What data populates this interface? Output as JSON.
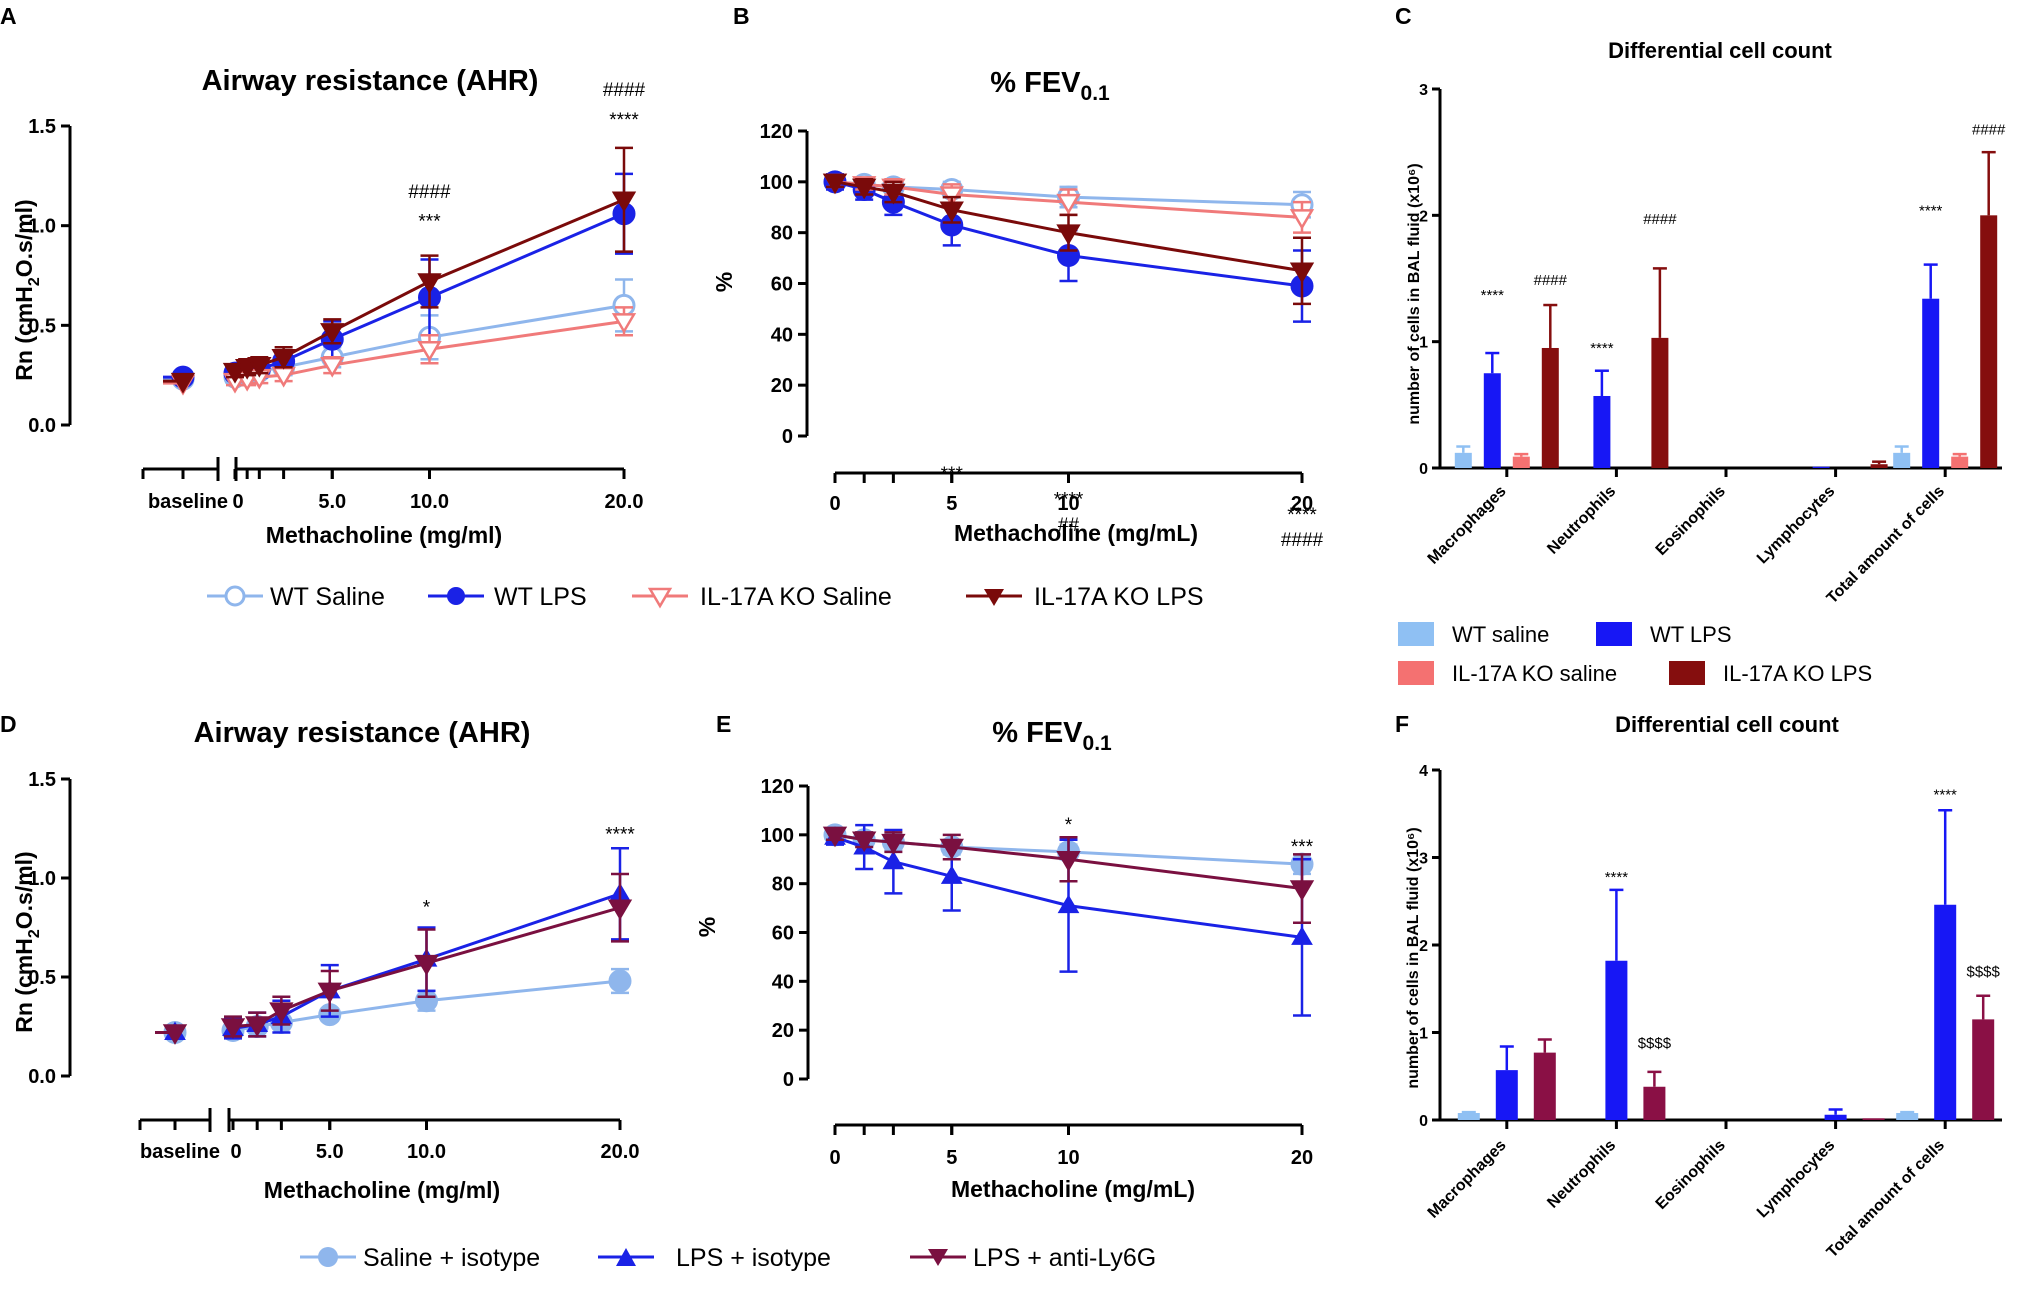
{
  "chart_data": [
    {
      "panel": "A",
      "type": "line",
      "title": "Airway resistance (AHR)",
      "xlabel": "Methacholine (mg/ml)",
      "ylabel": "Rn (cmH2O.s/ml)",
      "ylim": [
        0,
        1.5
      ],
      "yticks": [
        "0.0",
        "0.5",
        "1.0",
        "1.5"
      ],
      "xticks": [
        {
          "v": 0,
          "l": "0"
        },
        {
          "v": 5,
          "l": "5.0"
        },
        {
          "v": 10,
          "l": "10.0"
        },
        {
          "v": 20,
          "l": "20.0"
        }
      ],
      "baseline_label": "baseline",
      "x": [
        0,
        0.625,
        1.25,
        2.5,
        5,
        10,
        20
      ],
      "series": [
        {
          "name": "WT Saline",
          "color": "#8fb6ec",
          "marker": "circle-open",
          "baseline": 0.23,
          "values": [
            0.24,
            0.26,
            0.27,
            0.29,
            0.34,
            0.44,
            0.6
          ],
          "errors": [
            0.02,
            0.03,
            0.03,
            0.04,
            0.05,
            0.11,
            0.13
          ]
        },
        {
          "name": "WT LPS",
          "color": "#1a22e6",
          "marker": "circle",
          "baseline": 0.24,
          "values": [
            0.26,
            0.27,
            0.28,
            0.32,
            0.43,
            0.64,
            1.06
          ],
          "errors": [
            0.03,
            0.03,
            0.04,
            0.05,
            0.09,
            0.19,
            0.2
          ]
        },
        {
          "name": "IL-17A KO Saline",
          "color": "#f07a7a",
          "marker": "tri-down-open",
          "baseline": 0.21,
          "values": [
            0.22,
            0.23,
            0.24,
            0.25,
            0.3,
            0.38,
            0.52
          ],
          "errors": [
            0.02,
            0.03,
            0.03,
            0.03,
            0.04,
            0.07,
            0.07
          ]
        },
        {
          "name": "IL-17A KO LPS",
          "color": "#7a0a0a",
          "marker": "tri-down",
          "baseline": 0.22,
          "values": [
            0.27,
            0.29,
            0.3,
            0.34,
            0.47,
            0.72,
            1.13
          ],
          "errors": [
            0.03,
            0.04,
            0.04,
            0.05,
            0.06,
            0.13,
            0.26
          ]
        }
      ],
      "annotations": [
        {
          "x": 10,
          "y": 1.17,
          "text": "####"
        },
        {
          "x": 10,
          "y": 1.02,
          "text": "***"
        },
        {
          "x": 20,
          "y": 1.68,
          "text": "####"
        },
        {
          "x": 20,
          "y": 1.53,
          "text": "****"
        }
      ]
    },
    {
      "panel": "B",
      "type": "line",
      "title": "% FEV",
      "title_sub": "0.1",
      "xlabel": "Methacholine (mg/mL)",
      "ylabel": "%",
      "ylim": [
        0,
        120
      ],
      "yticks": [
        "0",
        "20",
        "40",
        "60",
        "80",
        "100",
        "120"
      ],
      "xticks": [
        {
          "v": 0,
          "l": "0"
        },
        {
          "v": 5,
          "l": "5"
        },
        {
          "v": 10,
          "l": "10"
        },
        {
          "v": 20,
          "l": "20"
        }
      ],
      "x": [
        0,
        1.25,
        2.5,
        5,
        10,
        20
      ],
      "series": [
        {
          "name": "WT Saline",
          "color": "#8fb6ec",
          "marker": "circle-open",
          "values": [
            100,
            99,
            98,
            97,
            94,
            91
          ],
          "errors": [
            2,
            2,
            2,
            3,
            4,
            5
          ]
        },
        {
          "name": "WT LPS",
          "color": "#1a22e6",
          "marker": "circle",
          "values": [
            100,
            97,
            92,
            83,
            71,
            59
          ],
          "errors": [
            3,
            4,
            5,
            8,
            10,
            14
          ]
        },
        {
          "name": "IL-17A KO Saline",
          "color": "#f07a7a",
          "marker": "tri-down-open",
          "values": [
            100,
            99,
            98,
            95,
            92,
            86
          ],
          "errors": [
            2,
            2,
            3,
            4,
            5,
            6
          ]
        },
        {
          "name": "IL-17A KO LPS",
          "color": "#7a0a0a",
          "marker": "tri-down",
          "values": [
            100,
            98,
            96,
            89,
            80,
            65
          ],
          "errors": [
            2,
            3,
            4,
            5,
            7,
            13
          ]
        }
      ],
      "annotations": [
        {
          "x": 5,
          "y": -15,
          "text": "***"
        },
        {
          "x": 10,
          "y": -25,
          "text": "****"
        },
        {
          "x": 10,
          "y": -35,
          "text": "##"
        },
        {
          "x": 20,
          "y": -31,
          "text": "****"
        },
        {
          "x": 20,
          "y": -41,
          "text": "####"
        }
      ]
    },
    {
      "panel": "C",
      "type": "bar",
      "title": "Differential cell count",
      "ylabel": "number of cells in BAL fluid (x10⁶)",
      "ylim": [
        0,
        3
      ],
      "yticks": [
        "0",
        "1",
        "2",
        "3"
      ],
      "categories": [
        "Macrophages",
        "Neutrophils",
        "Eosinophils",
        "Lymphocytes",
        "Total amount of cells"
      ],
      "series": [
        {
          "name": "WT saline",
          "color": "#8fc0f3",
          "values": [
            0.12,
            0,
            0,
            0,
            0.12
          ],
          "errors": [
            0.05,
            0,
            0,
            0,
            0.05
          ]
        },
        {
          "name": "WT LPS",
          "color": "#1717f5",
          "values": [
            0.75,
            0.57,
            0,
            0.01,
            1.34
          ],
          "errors": [
            0.16,
            0.2,
            0,
            0,
            0.27
          ]
        },
        {
          "name": "IL-17A KO saline",
          "color": "#f47171",
          "values": [
            0.09,
            0,
            0,
            0,
            0.09
          ],
          "errors": [
            0.02,
            0,
            0,
            0,
            0.02
          ]
        },
        {
          "name": "IL-17A KO LPS",
          "color": "#850e0e",
          "values": [
            0.95,
            1.03,
            0,
            0.03,
            2.0
          ],
          "errors": [
            0.34,
            0.55,
            0,
            0.02,
            0.5
          ]
        }
      ],
      "annotations": [
        {
          "cat": 0,
          "s": 1,
          "y": 1.37,
          "text": "****"
        },
        {
          "cat": 0,
          "s": 3,
          "y": 1.49,
          "text": "####"
        },
        {
          "cat": 1,
          "s": 1,
          "y": 0.95,
          "text": "****"
        },
        {
          "cat": 1,
          "s": 3,
          "y": 1.97,
          "text": "####"
        },
        {
          "cat": 4,
          "s": 1,
          "y": 2.04,
          "text": "****"
        },
        {
          "cat": 4,
          "s": 3,
          "y": 2.68,
          "text": "####"
        }
      ]
    },
    {
      "panel": "D",
      "type": "line",
      "title": "Airway resistance (AHR)",
      "xlabel": "Methacholine (mg/ml)",
      "ylabel": "Rn (cmH2O.s/ml)",
      "ylim": [
        0,
        1.5
      ],
      "yticks": [
        "0.0",
        "0.5",
        "1.0",
        "1.5"
      ],
      "xticks": [
        {
          "v": 0,
          "l": "0"
        },
        {
          "v": 5,
          "l": "5.0"
        },
        {
          "v": 10,
          "l": "10.0"
        },
        {
          "v": 20,
          "l": "20.0"
        }
      ],
      "baseline_label": "baseline",
      "x": [
        0,
        1.25,
        2.5,
        5,
        10,
        20
      ],
      "series": [
        {
          "name": "Saline + isotype",
          "color": "#8fb6ec",
          "marker": "circle",
          "baseline": 0.22,
          "values": [
            0.23,
            0.25,
            0.27,
            0.31,
            0.38,
            0.48
          ],
          "errors": [
            0.02,
            0.03,
            0.03,
            0.03,
            0.05,
            0.06
          ]
        },
        {
          "name": "LPS + isotype",
          "color": "#1a22e6",
          "marker": "tri-up",
          "baseline": 0.22,
          "values": [
            0.24,
            0.26,
            0.3,
            0.43,
            0.59,
            0.92
          ],
          "errors": [
            0.05,
            0.06,
            0.08,
            0.13,
            0.16,
            0.23
          ]
        },
        {
          "name": "LPS + anti-Ly6G",
          "color": "#7a1040",
          "marker": "tri-down",
          "baseline": 0.22,
          "values": [
            0.25,
            0.26,
            0.33,
            0.43,
            0.57,
            0.85
          ],
          "errors": [
            0.05,
            0.06,
            0.07,
            0.1,
            0.17,
            0.17
          ]
        }
      ],
      "annotations": [
        {
          "x": 10,
          "y": 0.85,
          "text": "*"
        },
        {
          "x": 20,
          "y": 1.22,
          "text": "****"
        }
      ]
    },
    {
      "panel": "E",
      "type": "line",
      "title": "% FEV",
      "title_sub": "0.1",
      "xlabel": "Methacholine (mg/mL)",
      "ylabel": "%",
      "ylim": [
        0,
        120
      ],
      "yticks": [
        "0",
        "20",
        "40",
        "60",
        "80",
        "100",
        "120"
      ],
      "xticks": [
        {
          "v": 0,
          "l": "0"
        },
        {
          "v": 5,
          "l": "5"
        },
        {
          "v": 10,
          "l": "10"
        },
        {
          "v": 20,
          "l": "20"
        }
      ],
      "x": [
        0,
        1.25,
        2.5,
        5,
        10,
        20
      ],
      "series": [
        {
          "name": "Saline + isotype",
          "color": "#8fb6ec",
          "marker": "circle",
          "values": [
            100,
            98,
            97,
            95,
            93,
            88
          ],
          "errors": [
            2,
            3,
            3,
            3,
            3,
            4
          ]
        },
        {
          "name": "LPS + isotype",
          "color": "#1a22e6",
          "marker": "tri-up",
          "values": [
            99,
            95,
            89,
            83,
            71,
            58
          ],
          "errors": [
            3,
            9,
            13,
            14,
            27,
            32
          ]
        },
        {
          "name": "LPS + anti-Ly6G",
          "color": "#7a1040",
          "marker": "tri-down",
          "values": [
            100,
            98,
            97,
            95,
            90,
            78
          ],
          "errors": [
            2,
            3,
            4,
            5,
            9,
            14
          ]
        }
      ],
      "annotations": [
        {
          "x": 10,
          "y": 104,
          "text": "*"
        },
        {
          "x": 20,
          "y": 95,
          "text": "***"
        }
      ]
    },
    {
      "panel": "F",
      "type": "bar",
      "title": "Differential cell count",
      "ylabel": "number of cells in BAL fluid (x10⁶)",
      "ylim": [
        0,
        4
      ],
      "yticks": [
        "0",
        "1",
        "2",
        "3",
        "4"
      ],
      "categories": [
        "Macrophages",
        "Neutrophils",
        "Eosinophils",
        "Lymphocytes",
        "Total amount of cells"
      ],
      "series": [
        {
          "name": "Saline + isotype",
          "color": "#8fc0f3",
          "values": [
            0.08,
            0,
            0,
            0,
            0.08
          ],
          "errors": [
            0.01,
            0,
            0,
            0,
            0.01
          ]
        },
        {
          "name": "LPS + isotype",
          "color": "#1717f5",
          "values": [
            0.57,
            1.82,
            0,
            0.06,
            2.46
          ],
          "errors": [
            0.27,
            0.81,
            0,
            0.06,
            1.08
          ]
        },
        {
          "name": "LPS + anti-Ly6G",
          "color": "#8a1045",
          "values": [
            0.77,
            0.38,
            0,
            0.02,
            1.15
          ],
          "errors": [
            0.15,
            0.17,
            0,
            0,
            0.27
          ]
        }
      ],
      "annotations": [
        {
          "cat": 1,
          "s": 1,
          "y": 2.78,
          "text": "****"
        },
        {
          "cat": 1,
          "s": 2,
          "y": 0.88,
          "text": "$$$$"
        },
        {
          "cat": 4,
          "s": 1,
          "y": 3.72,
          "text": "****"
        },
        {
          "cat": 4,
          "s": 2,
          "y": 1.7,
          "text": "$$$$"
        }
      ]
    }
  ]
}
